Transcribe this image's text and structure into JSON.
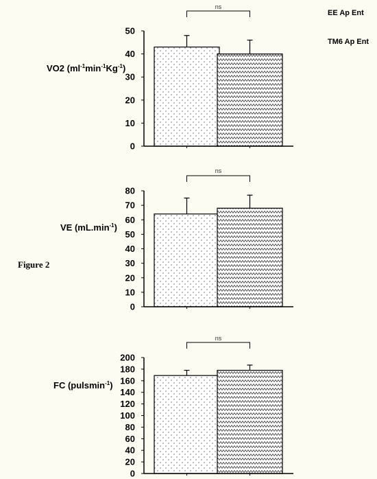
{
  "figure_label": "Figure 2",
  "legend": [
    "EE Ap Ent",
    "TM6 Ap Ent"
  ],
  "chart_data": [
    {
      "type": "bar",
      "ylabel": "VO2 (ml-1min-1Kg-1)",
      "ylabel_parts": [
        "VO2 (ml",
        "-1",
        "min",
        "-1",
        "Kg",
        "-1",
        ")"
      ],
      "ylim": [
        0,
        50
      ],
      "yticks": [
        0,
        10,
        20,
        30,
        40,
        50
      ],
      "series": [
        {
          "name": "EE Ap Ent",
          "value": 43,
          "error": 5
        },
        {
          "name": "TM6 Ap Ent",
          "value": 40,
          "error": 6
        }
      ],
      "annotation": "ns"
    },
    {
      "type": "bar",
      "ylabel": "VE (mL.min-1)",
      "ylabel_parts": [
        "VE (mL.min",
        "-1",
        ")"
      ],
      "ylim": [
        0,
        80
      ],
      "yticks": [
        0,
        10,
        20,
        30,
        40,
        50,
        60,
        70,
        80
      ],
      "series": [
        {
          "name": "EE Ap Ent",
          "value": 64,
          "error": 11
        },
        {
          "name": "TM6 Ap Ent",
          "value": 68,
          "error": 9
        }
      ],
      "annotation": "ns"
    },
    {
      "type": "bar",
      "ylabel": "FC (pulsmin-1)",
      "ylabel_parts": [
        "FC (pulsmin",
        "-1",
        ")"
      ],
      "ylim": [
        0,
        200
      ],
      "yticks": [
        0,
        20,
        40,
        60,
        80,
        100,
        120,
        140,
        160,
        180,
        200
      ],
      "series": [
        {
          "name": "EE Ap Ent",
          "value": 169,
          "error": 9
        },
        {
          "name": "TM6 Ap Ent",
          "value": 178,
          "error": 9
        }
      ],
      "annotation": "ns"
    }
  ]
}
